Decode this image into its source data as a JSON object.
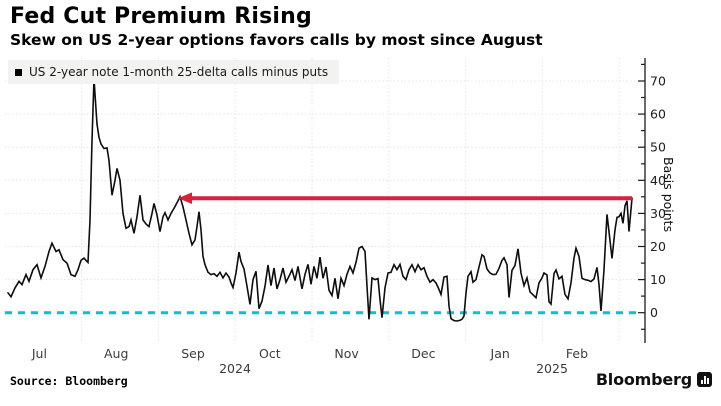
{
  "header": {
    "title": "Fed Cut Premium Rising",
    "subtitle": "Skew on US 2-year options favors calls by most since August"
  },
  "legend": {
    "label": "US 2-year note 1-month 25-delta calls minus puts",
    "marker_color": "#000000"
  },
  "footer": {
    "source": "Source: Bloomberg",
    "brand": "Bloomberg"
  },
  "colors": {
    "line": "#0d0d0d",
    "annotation_red": "#d9213c",
    "zero_line_cyan": "#06c3ce",
    "gridline": "#e3e3e3",
    "axis": "#1a1a1a",
    "tick_label": "#1d1d1d",
    "month_label": "#3c3c3c",
    "legend_bg": "#f2f2f0"
  },
  "chart_data": {
    "type": "line",
    "title": "Fed Cut Premium Rising",
    "subtitle": "Skew on US 2-year options favors calls by most since August",
    "series_name": "US 2-year note 1-month 25-delta calls minus puts",
    "ylabel": "Basis points",
    "ylim": [
      -9,
      77
    ],
    "y_axis": {
      "side": "right",
      "ticks": [
        0,
        10,
        20,
        30,
        40,
        50,
        60,
        70
      ],
      "minor_tick_step": 5
    },
    "x_axis": {
      "month_labels": [
        "Jul",
        "Aug",
        "Sep",
        "Oct",
        "Nov",
        "Dec",
        "Jan",
        "Feb"
      ],
      "year_labels": [
        "2024",
        "2025"
      ],
      "note": "time axis Jul 1 2024 - late Feb 2025; point x values are pixels, ~76.8 px per month, Jul 1 at x=4.8"
    },
    "zero_reference_line": {
      "value": 0,
      "style": "dashed"
    },
    "annotation_arrow": {
      "y_value": 34.6,
      "x_tip": 178,
      "x_tail": 632,
      "direction": "left",
      "meaning": "current skew equals highest level since August"
    },
    "points": [
      [
        8,
        6
      ],
      [
        11,
        4.8
      ],
      [
        15,
        7.5
      ],
      [
        19,
        9.5
      ],
      [
        22,
        8.5
      ],
      [
        26,
        11.5
      ],
      [
        29,
        9.5
      ],
      [
        33,
        13
      ],
      [
        37,
        14.5
      ],
      [
        41,
        10.5
      ],
      [
        45,
        14
      ],
      [
        49,
        18.5
      ],
      [
        52,
        21
      ],
      [
        56,
        18.5
      ],
      [
        59,
        19
      ],
      [
        63,
        16
      ],
      [
        67,
        15
      ],
      [
        71,
        11.5
      ],
      [
        75,
        11
      ],
      [
        78,
        13
      ],
      [
        81,
        15.8
      ],
      [
        84,
        16.5
      ],
      [
        86,
        15.8
      ],
      [
        88,
        15.2
      ],
      [
        90,
        28
      ],
      [
        92,
        52
      ],
      [
        94,
        70.8
      ],
      [
        95,
        66
      ],
      [
        97,
        57
      ],
      [
        99,
        53
      ],
      [
        101,
        51
      ],
      [
        104,
        49.6
      ],
      [
        107,
        49.8
      ],
      [
        109,
        46
      ],
      [
        112,
        35.5
      ],
      [
        115,
        40
      ],
      [
        117,
        43.6
      ],
      [
        120,
        40
      ],
      [
        123,
        30
      ],
      [
        126,
        25.5
      ],
      [
        129,
        26
      ],
      [
        131,
        28
      ],
      [
        134,
        24
      ],
      [
        137,
        29
      ],
      [
        140,
        35.5
      ],
      [
        143,
        28
      ],
      [
        146,
        26.8
      ],
      [
        149,
        26
      ],
      [
        152,
        30
      ],
      [
        154,
        33
      ],
      [
        157,
        29.5
      ],
      [
        160,
        24.5
      ],
      [
        163,
        29
      ],
      [
        165,
        30.2
      ],
      [
        168,
        28
      ],
      [
        171,
        30
      ],
      [
        174,
        31.5
      ],
      [
        177,
        33.2
      ],
      [
        180,
        35
      ],
      [
        183,
        32
      ],
      [
        186,
        28
      ],
      [
        189,
        24
      ],
      [
        192,
        20.5
      ],
      [
        195,
        22
      ],
      [
        197,
        26
      ],
      [
        199,
        30.5
      ],
      [
        201,
        25
      ],
      [
        203,
        17
      ],
      [
        205,
        14.5
      ],
      [
        208,
        12.2
      ],
      [
        211,
        11.5
      ],
      [
        214,
        11.8
      ],
      [
        217,
        11
      ],
      [
        220,
        12.2
      ],
      [
        223,
        10.5
      ],
      [
        226,
        12
      ],
      [
        229,
        10.8
      ],
      [
        231,
        9
      ],
      [
        233,
        7.6
      ],
      [
        236,
        12
      ],
      [
        239,
        18.3
      ],
      [
        241,
        15.5
      ],
      [
        244,
        13.2
      ],
      [
        247,
        8
      ],
      [
        250,
        2.5
      ],
      [
        253,
        10
      ],
      [
        256,
        12.5
      ],
      [
        259,
        1.2
      ],
      [
        262,
        3.5
      ],
      [
        265,
        8
      ],
      [
        268,
        14.4
      ],
      [
        271,
        8.2
      ],
      [
        274,
        13.5
      ],
      [
        277,
        7.2
      ],
      [
        280,
        10
      ],
      [
        283,
        13.5
      ],
      [
        286,
        9.2
      ],
      [
        289,
        11
      ],
      [
        292,
        13
      ],
      [
        295,
        9.7
      ],
      [
        298,
        14
      ],
      [
        302,
        7.2
      ],
      [
        305,
        11.6
      ],
      [
        308,
        14.6
      ],
      [
        311,
        8.6
      ],
      [
        314,
        14
      ],
      [
        317,
        10.4
      ],
      [
        320,
        16.8
      ],
      [
        323,
        10.4
      ],
      [
        326,
        13.8
      ],
      [
        329,
        6.8
      ],
      [
        332,
        5.2
      ],
      [
        335,
        10.4
      ],
      [
        338,
        4.2
      ],
      [
        341,
        10.4
      ],
      [
        344,
        8.2
      ],
      [
        347,
        11.6
      ],
      [
        350,
        14
      ],
      [
        353,
        12
      ],
      [
        356,
        15.2
      ],
      [
        359,
        19.5
      ],
      [
        362,
        20
      ],
      [
        365,
        18.5
      ],
      [
        367,
        8
      ],
      [
        369,
        -2
      ],
      [
        372,
        10.5
      ],
      [
        375,
        10
      ],
      [
        378,
        10.3
      ],
      [
        380,
        4
      ],
      [
        382,
        -1.5
      ],
      [
        385,
        7.5
      ],
      [
        388,
        12
      ],
      [
        391,
        12.2
      ],
      [
        394,
        14.5
      ],
      [
        397,
        13
      ],
      [
        400,
        14.6
      ],
      [
        403,
        11
      ],
      [
        406,
        10
      ],
      [
        409,
        13
      ],
      [
        412,
        14.5
      ],
      [
        415,
        12.4
      ],
      [
        418,
        14.5
      ],
      [
        421,
        13
      ],
      [
        424,
        13.6
      ],
      [
        427,
        11
      ],
      [
        430,
        9.2
      ],
      [
        433,
        10
      ],
      [
        436,
        9
      ],
      [
        439,
        7
      ],
      [
        441,
        5.5
      ],
      [
        444,
        10.8
      ],
      [
        447,
        11
      ],
      [
        449,
        2
      ],
      [
        451,
        -1.8
      ],
      [
        454,
        -2.4
      ],
      [
        457,
        -2.5
      ],
      [
        460,
        -2.3
      ],
      [
        462,
        -2
      ],
      [
        464,
        -1
      ],
      [
        466,
        6
      ],
      [
        468,
        11
      ],
      [
        471,
        12.4
      ],
      [
        473,
        9.2
      ],
      [
        476,
        10
      ],
      [
        479,
        13.8
      ],
      [
        482,
        17.5
      ],
      [
        484,
        17
      ],
      [
        487,
        13.2
      ],
      [
        490,
        12
      ],
      [
        493,
        11.5
      ],
      [
        496,
        11.6
      ],
      [
        499,
        13.4
      ],
      [
        502,
        15.8
      ],
      [
        504,
        16.6
      ],
      [
        507,
        14.5
      ],
      [
        509,
        4.6
      ],
      [
        512,
        12.8
      ],
      [
        515,
        14.3
      ],
      [
        518,
        19.3
      ],
      [
        521,
        12
      ],
      [
        524,
        8.2
      ],
      [
        527,
        10.5
      ],
      [
        530,
        6.3
      ],
      [
        533,
        5.4
      ],
      [
        536,
        4.5
      ],
      [
        539,
        9
      ],
      [
        542,
        10.5
      ],
      [
        544,
        12
      ],
      [
        547,
        11.4
      ],
      [
        549,
        3.3
      ],
      [
        551,
        2.6
      ],
      [
        554,
        11.8
      ],
      [
        556,
        12.9
      ],
      [
        559,
        10.2
      ],
      [
        562,
        11
      ],
      [
        565,
        5.5
      ],
      [
        568,
        4.2
      ],
      [
        571,
        9
      ],
      [
        574,
        16.5
      ],
      [
        576,
        19.5
      ],
      [
        579,
        17
      ],
      [
        582,
        10.4
      ],
      [
        585,
        10
      ],
      [
        588,
        9.8
      ],
      [
        591,
        9.4
      ],
      [
        594,
        10.2
      ],
      [
        597,
        13.7
      ],
      [
        599,
        8.5
      ],
      [
        601,
        0.5
      ],
      [
        604,
        13
      ],
      [
        607,
        29.7
      ],
      [
        609,
        24.5
      ],
      [
        612,
        16.4
      ],
      [
        615,
        25
      ],
      [
        617,
        28.8
      ],
      [
        619,
        29
      ],
      [
        621,
        30
      ],
      [
        623,
        27
      ],
      [
        625,
        32.3
      ],
      [
        627,
        33.8
      ],
      [
        629,
        24.5
      ],
      [
        632,
        34.6
      ]
    ]
  }
}
